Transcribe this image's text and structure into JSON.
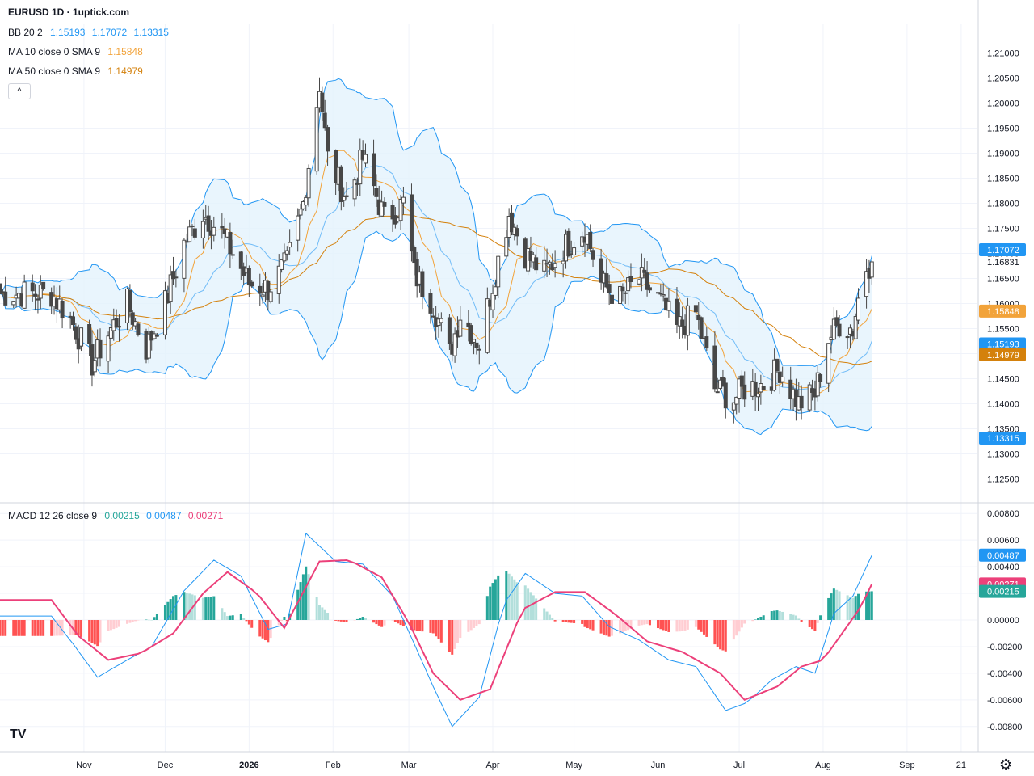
{
  "header": {
    "title": "EURUSD 1D · 1uptick.com",
    "bb": {
      "name": "BB 20 2",
      "v1": "1.15193",
      "v2": "1.17072",
      "v3": "1.13315"
    },
    "ma10": {
      "name": "MA 10 close 0 SMA 9",
      "v": "1.15848"
    },
    "ma50": {
      "name": "MA 50 close 0 SMA 9",
      "v": "1.14979"
    },
    "macd": {
      "name": "MACD 12 26 close 9",
      "v1": "0.00215",
      "v2": "0.00487",
      "v3": "0.00271"
    }
  },
  "colors": {
    "bb": "#2196f3",
    "bb_fill": "#e3f2fd",
    "ma10": "#f2a33a",
    "ma50": "#d4810c",
    "macd": "#2196f3",
    "signal": "#ec407a",
    "hist_up_strong": "#26a69a",
    "hist_up_weak": "#b2dfdb",
    "hist_down_strong": "#ff5252",
    "hist_down_weak": "#ffcdd2",
    "candle": "#474747"
  },
  "icons": {
    "collapse": "chevron-up-icon",
    "logo": "tradingview-logo-icon",
    "settings": "gear-icon"
  },
  "collapse_glyph": "^",
  "logo_text": "TV",
  "chart_data": [
    {
      "type": "candlestick",
      "title": "EURUSD 1D · 1uptick.com",
      "x_ticks": [
        "Nov",
        "Dec",
        "2026",
        "Feb",
        "Mar",
        "Apr",
        "May",
        "Jun",
        "Jul",
        "Aug",
        "Sep",
        "21"
      ],
      "ylim": [
        1.1225,
        1.2125
      ],
      "y_ticks": [
        "1.21000",
        "1.20500",
        "1.20000",
        "1.19500",
        "1.19000",
        "1.18500",
        "1.18000",
        "1.17500",
        "1.17000",
        "1.16500",
        "1.16000",
        "1.15500",
        "1.15000",
        "1.14500",
        "1.14000",
        "1.13500",
        "1.13000",
        "1.12500"
      ],
      "last_price": 1.16831,
      "price_labels": [
        {
          "label": "1.17072",
          "value": 1.17072,
          "color": "#2196f3"
        },
        {
          "label": "1.15848",
          "value": 1.15848,
          "color": "#f2a33a"
        },
        {
          "label": "1.15193",
          "value": 1.15193,
          "color": "#2196f3"
        },
        {
          "label": "1.14979",
          "value": 1.14979,
          "color": "#d4810c"
        },
        {
          "label": "1.13315",
          "value": 1.13315,
          "color": "#2196f3"
        }
      ],
      "close_path": [
        [
          "2025-10-20",
          1.162
        ],
        [
          "2025-10-27",
          1.157
        ],
        [
          "2025-11-04",
          1.148
        ],
        [
          "2025-11-10",
          1.154
        ],
        [
          "2025-11-17",
          1.16
        ],
        [
          "2025-11-24",
          1.151
        ],
        [
          "2025-12-01",
          1.16
        ],
        [
          "2025-12-08",
          1.172
        ],
        [
          "2025-12-15",
          1.178
        ],
        [
          "2025-12-22",
          1.174
        ],
        [
          "2026-01-01",
          1.164
        ],
        [
          "2026-01-08",
          1.163
        ],
        [
          "2026-01-15",
          1.168
        ],
        [
          "2026-01-21",
          1.18
        ],
        [
          "2026-01-27",
          1.204
        ],
        [
          "2026-01-30",
          1.189
        ],
        [
          "2026-02-06",
          1.181
        ],
        [
          "2026-02-12",
          1.189
        ],
        [
          "2026-02-20",
          1.177
        ],
        [
          "2026-02-27",
          1.18
        ],
        [
          "2026-03-03",
          1.166
        ],
        [
          "2026-03-10",
          1.16
        ],
        [
          "2026-03-16",
          1.15
        ],
        [
          "2026-03-20",
          1.158
        ],
        [
          "2026-03-27",
          1.152
        ],
        [
          "2026-04-01",
          1.164
        ],
        [
          "2026-04-07",
          1.178
        ],
        [
          "2026-04-13",
          1.17
        ],
        [
          "2026-04-20",
          1.166
        ],
        [
          "2026-04-27",
          1.171
        ],
        [
          "2026-05-05",
          1.175
        ],
        [
          "2026-05-11",
          1.164
        ],
        [
          "2026-05-18",
          1.161
        ],
        [
          "2026-05-25",
          1.165
        ],
        [
          "2026-06-01",
          1.161
        ],
        [
          "2026-06-08",
          1.155
        ],
        [
          "2026-06-15",
          1.158
        ],
        [
          "2026-06-22",
          1.143
        ],
        [
          "2026-06-29",
          1.141
        ],
        [
          "2026-07-03",
          1.143
        ],
        [
          "2026-07-10",
          1.144
        ],
        [
          "2026-07-16",
          1.147
        ],
        [
          "2026-07-23",
          1.14
        ],
        [
          "2026-07-29",
          1.142
        ],
        [
          "2026-08-03",
          1.153
        ],
        [
          "2026-08-07",
          1.156
        ],
        [
          "2026-08-12",
          1.155
        ],
        [
          "2026-08-16",
          1.167
        ],
        [
          "2026-08-19",
          1.1683
        ]
      ],
      "series": [
        {
          "name": "BB 20 2",
          "type": "band"
        },
        {
          "name": "MA 10 close 0 SMA 9",
          "type": "line"
        },
        {
          "name": "MA 50 close 0 SMA 9",
          "type": "line"
        }
      ]
    },
    {
      "type": "line+bar",
      "title": "MACD 12 26 close 9",
      "ylim": [
        -0.0085,
        0.0085
      ],
      "y_ticks": [
        "0.00800",
        "0.00600",
        "0.00400",
        "0.00200",
        "0.00000",
        "-0.00200",
        "-0.00400",
        "-0.00600",
        "-0.00800"
      ],
      "price_labels": [
        {
          "label": "0.00487",
          "value": 0.00487,
          "color": "#2196f3"
        },
        {
          "label": "0.00271",
          "value": 0.00271,
          "color": "#ec407a"
        },
        {
          "label": "0.00215",
          "value": 0.00215,
          "color": "#26a69a"
        }
      ],
      "macd_path": [
        [
          "2025-10-20",
          0.0003
        ],
        [
          "2025-10-28",
          -0.0018
        ],
        [
          "2025-11-06",
          -0.0043
        ],
        [
          "2025-11-17",
          -0.003
        ],
        [
          "2025-11-26",
          -0.002
        ],
        [
          "2025-12-08",
          0.0022
        ],
        [
          "2025-12-19",
          0.0045
        ],
        [
          "2025-12-29",
          0.0033
        ],
        [
          "2026-01-08",
          -0.0007
        ],
        [
          "2026-01-15",
          -0.0003
        ],
        [
          "2026-01-22",
          0.0065
        ],
        [
          "2026-02-02",
          0.0044
        ],
        [
          "2026-02-12",
          0.0042
        ],
        [
          "2026-02-23",
          0.0018
        ],
        [
          "2026-03-03",
          -0.0018
        ],
        [
          "2026-03-10",
          -0.005
        ],
        [
          "2026-03-17",
          -0.008
        ],
        [
          "2026-03-27",
          -0.0058
        ],
        [
          "2026-04-05",
          0.0012
        ],
        [
          "2026-04-13",
          0.0035
        ],
        [
          "2026-04-24",
          0.002
        ],
        [
          "2026-05-04",
          0.0018
        ],
        [
          "2026-05-14",
          -0.0005
        ],
        [
          "2026-05-25",
          -0.0015
        ],
        [
          "2026-06-05",
          -0.003
        ],
        [
          "2026-06-15",
          -0.0035
        ],
        [
          "2026-06-26",
          -0.0068
        ],
        [
          "2026-07-04",
          -0.0062
        ],
        [
          "2026-07-13",
          -0.0045
        ],
        [
          "2026-07-22",
          -0.0035
        ],
        [
          "2026-07-29",
          -0.004
        ],
        [
          "2026-08-05",
          0.0005
        ],
        [
          "2026-08-12",
          0.0018
        ],
        [
          "2026-08-19",
          0.00487
        ]
      ],
      "signal_path": [
        [
          "2025-10-20",
          0.0015
        ],
        [
          "2025-10-30",
          -0.0012
        ],
        [
          "2025-11-10",
          -0.003
        ],
        [
          "2025-11-22",
          -0.0025
        ],
        [
          "2025-12-04",
          -0.001
        ],
        [
          "2025-12-15",
          0.002
        ],
        [
          "2025-12-24",
          0.0036
        ],
        [
          "2026-01-04",
          0.002
        ],
        [
          "2026-01-14",
          -0.0006
        ],
        [
          "2026-01-27",
          0.0044
        ],
        [
          "2026-02-07",
          0.0045
        ],
        [
          "2026-02-19",
          0.0032
        ],
        [
          "2026-03-01",
          -0.0002
        ],
        [
          "2026-03-10",
          -0.004
        ],
        [
          "2026-03-20",
          -0.006
        ],
        [
          "2026-03-31",
          -0.0052
        ],
        [
          "2026-04-12",
          0.0008
        ],
        [
          "2026-04-24",
          0.0021
        ],
        [
          "2026-05-05",
          0.0021
        ],
        [
          "2026-05-17",
          0.0003
        ],
        [
          "2026-05-28",
          -0.0016
        ],
        [
          "2026-06-10",
          -0.0024
        ],
        [
          "2026-06-24",
          -0.004
        ],
        [
          "2026-07-03",
          -0.006
        ],
        [
          "2026-07-15",
          -0.005
        ],
        [
          "2026-07-24",
          -0.0035
        ],
        [
          "2026-08-01",
          -0.003
        ],
        [
          "2026-08-08",
          -0.001
        ],
        [
          "2026-08-15",
          0.001
        ],
        [
          "2026-08-19",
          0.00271
        ]
      ]
    }
  ]
}
